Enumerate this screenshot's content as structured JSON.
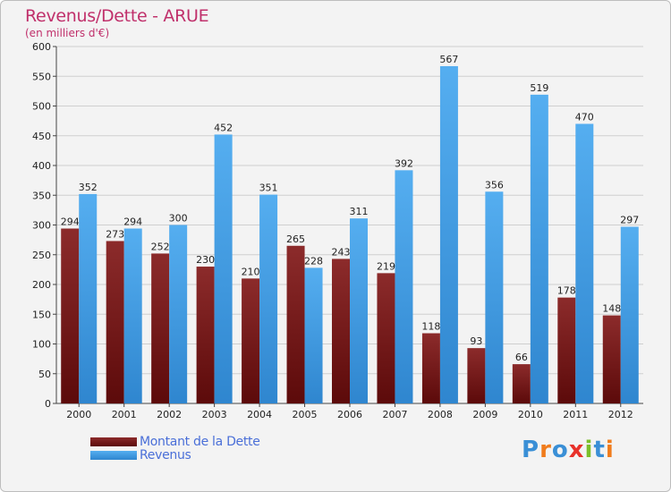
{
  "title": "Revenus/Dette - ARUE",
  "subtitle": "(en milliers d'€)",
  "logo": {
    "text": "Proxiti",
    "letter_colors": [
      "#3a8fd6",
      "#f07c1c",
      "#3a8fd6",
      "#e8312a",
      "#7bbf2a",
      "#3a8fd6",
      "#f07c1c"
    ]
  },
  "colors": {
    "dette": "#7a1b1b",
    "revenus": "#3b96dd",
    "accent": "#c0306b"
  },
  "chart_data": {
    "type": "bar",
    "title": "Revenus/Dette - ARUE",
    "ylabel": "(en milliers d'€)",
    "categories": [
      "2000",
      "2001",
      "2002",
      "2003",
      "2004",
      "2005",
      "2006",
      "2007",
      "2008",
      "2009",
      "2010",
      "2011",
      "2012"
    ],
    "series": [
      {
        "name": "Montant de la Dette",
        "values": [
          294,
          273,
          252,
          230,
          210,
          265,
          243,
          219,
          118,
          93,
          66,
          178,
          148
        ]
      },
      {
        "name": "Revenus",
        "values": [
          352,
          294,
          300,
          452,
          351,
          228,
          311,
          392,
          567,
          356,
          519,
          470,
          297
        ]
      }
    ],
    "ylim": [
      0,
      600
    ],
    "yticks": [
      0,
      50,
      100,
      150,
      200,
      250,
      300,
      350,
      400,
      450,
      500,
      550,
      600
    ],
    "grid": true,
    "legend": "bottom-left"
  }
}
